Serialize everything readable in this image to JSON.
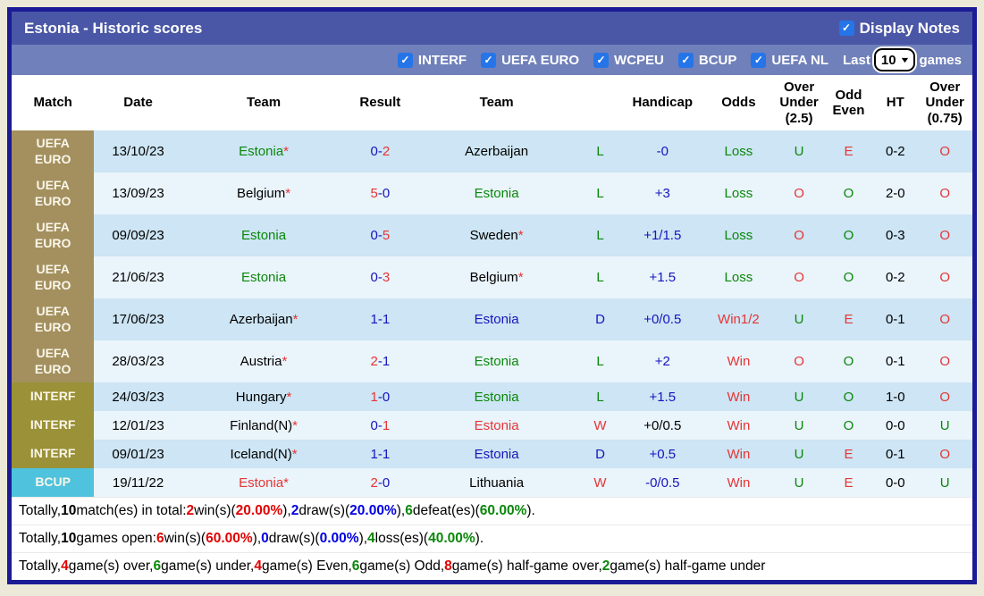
{
  "colors": {
    "green": "#0a870a",
    "red": "#e53535",
    "blue": "#1515bd",
    "black": "#000000",
    "badge_uefa": "#a3905e",
    "badge_interf": "#9a9138",
    "badge_bcup": "#4fc3dd",
    "stripe_a": "#cde5f4",
    "stripe_b": "#eaf4fb"
  },
  "header": {
    "title": "Estonia - Historic scores",
    "display_notes_label": "Display Notes",
    "display_notes_checked": true
  },
  "filters": {
    "competitions": [
      {
        "label": "INTERF",
        "checked": true
      },
      {
        "label": "UEFA EURO",
        "checked": true
      },
      {
        "label": "WCPEU",
        "checked": true
      },
      {
        "label": "BCUP",
        "checked": true
      },
      {
        "label": "UEFA NL",
        "checked": true
      }
    ],
    "last_label": "Last",
    "games_label": "games",
    "last_value": "10",
    "last_options": [
      "10"
    ]
  },
  "table": {
    "columns": [
      "Match",
      "Date",
      "Team",
      "Result",
      "Team",
      "",
      "Handicap",
      "Odds",
      "Over Under (2.5)",
      "Odd Even",
      "HT",
      "Over Under (0.75)"
    ],
    "rows": [
      {
        "competition": "UEFA EURO",
        "badge_color": "#a3905e",
        "date": "13/10/23",
        "home": {
          "name": "Estonia",
          "starred": true,
          "color": "#0a870a"
        },
        "score": {
          "home": "0",
          "away": "2",
          "home_color": "#1515bd",
          "away_color": "#e53535"
        },
        "away": {
          "name": "Azerbaijan",
          "starred": false,
          "color": "#000000"
        },
        "wdl": {
          "text": "L",
          "color": "#0a870a"
        },
        "handicap": {
          "text": "-0",
          "color": "#1515bd"
        },
        "odds": {
          "text": "Loss",
          "color": "#0a870a"
        },
        "ou25": {
          "text": "U",
          "color": "#0a870a"
        },
        "oddeven": {
          "text": "E",
          "color": "#e53535"
        },
        "ht": "0-2",
        "ou075": {
          "text": "O",
          "color": "#e53535"
        }
      },
      {
        "competition": "UEFA EURO",
        "badge_color": "#a3905e",
        "date": "13/09/23",
        "home": {
          "name": "Belgium",
          "starred": true,
          "color": "#000000"
        },
        "score": {
          "home": "5",
          "away": "0",
          "home_color": "#e53535",
          "away_color": "#1515bd"
        },
        "away": {
          "name": "Estonia",
          "starred": false,
          "color": "#0a870a"
        },
        "wdl": {
          "text": "L",
          "color": "#0a870a"
        },
        "handicap": {
          "text": "+3",
          "color": "#1515bd"
        },
        "odds": {
          "text": "Loss",
          "color": "#0a870a"
        },
        "ou25": {
          "text": "O",
          "color": "#e53535"
        },
        "oddeven": {
          "text": "O",
          "color": "#0a870a"
        },
        "ht": "2-0",
        "ou075": {
          "text": "O",
          "color": "#e53535"
        }
      },
      {
        "competition": "UEFA EURO",
        "badge_color": "#a3905e",
        "date": "09/09/23",
        "home": {
          "name": "Estonia",
          "starred": false,
          "color": "#0a870a"
        },
        "score": {
          "home": "0",
          "away": "5",
          "home_color": "#1515bd",
          "away_color": "#e53535"
        },
        "away": {
          "name": "Sweden",
          "starred": true,
          "color": "#000000"
        },
        "wdl": {
          "text": "L",
          "color": "#0a870a"
        },
        "handicap": {
          "text": "+1/1.5",
          "color": "#1515bd"
        },
        "odds": {
          "text": "Loss",
          "color": "#0a870a"
        },
        "ou25": {
          "text": "O",
          "color": "#e53535"
        },
        "oddeven": {
          "text": "O",
          "color": "#0a870a"
        },
        "ht": "0-3",
        "ou075": {
          "text": "O",
          "color": "#e53535"
        }
      },
      {
        "competition": "UEFA EURO",
        "badge_color": "#a3905e",
        "date": "21/06/23",
        "home": {
          "name": "Estonia",
          "starred": false,
          "color": "#0a870a"
        },
        "score": {
          "home": "0",
          "away": "3",
          "home_color": "#1515bd",
          "away_color": "#e53535"
        },
        "away": {
          "name": "Belgium",
          "starred": true,
          "color": "#000000"
        },
        "wdl": {
          "text": "L",
          "color": "#0a870a"
        },
        "handicap": {
          "text": "+1.5",
          "color": "#1515bd"
        },
        "odds": {
          "text": "Loss",
          "color": "#0a870a"
        },
        "ou25": {
          "text": "O",
          "color": "#e53535"
        },
        "oddeven": {
          "text": "O",
          "color": "#0a870a"
        },
        "ht": "0-2",
        "ou075": {
          "text": "O",
          "color": "#e53535"
        }
      },
      {
        "competition": "UEFA EURO",
        "badge_color": "#a3905e",
        "date": "17/06/23",
        "home": {
          "name": "Azerbaijan",
          "starred": true,
          "color": "#000000"
        },
        "score": {
          "home": "1",
          "away": "1",
          "home_color": "#1515bd",
          "away_color": "#1515bd"
        },
        "away": {
          "name": "Estonia",
          "starred": false,
          "color": "#1515bd"
        },
        "wdl": {
          "text": "D",
          "color": "#1515bd"
        },
        "handicap": {
          "text": "+0/0.5",
          "color": "#1515bd"
        },
        "odds": {
          "text": "Win1/2",
          "color": "#e53535"
        },
        "ou25": {
          "text": "U",
          "color": "#0a870a"
        },
        "oddeven": {
          "text": "E",
          "color": "#e53535"
        },
        "ht": "0-1",
        "ou075": {
          "text": "O",
          "color": "#e53535"
        }
      },
      {
        "competition": "UEFA EURO",
        "badge_color": "#a3905e",
        "date": "28/03/23",
        "home": {
          "name": "Austria",
          "starred": true,
          "color": "#000000"
        },
        "score": {
          "home": "2",
          "away": "1",
          "home_color": "#e53535",
          "away_color": "#1515bd"
        },
        "away": {
          "name": "Estonia",
          "starred": false,
          "color": "#0a870a"
        },
        "wdl": {
          "text": "L",
          "color": "#0a870a"
        },
        "handicap": {
          "text": "+2",
          "color": "#1515bd"
        },
        "odds": {
          "text": "Win",
          "color": "#e53535"
        },
        "ou25": {
          "text": "O",
          "color": "#e53535"
        },
        "oddeven": {
          "text": "O",
          "color": "#0a870a"
        },
        "ht": "0-1",
        "ou075": {
          "text": "O",
          "color": "#e53535"
        }
      },
      {
        "competition": "INTERF",
        "badge_color": "#9a9138",
        "date": "24/03/23",
        "home": {
          "name": "Hungary",
          "starred": true,
          "color": "#000000"
        },
        "score": {
          "home": "1",
          "away": "0",
          "home_color": "#e53535",
          "away_color": "#1515bd"
        },
        "away": {
          "name": "Estonia",
          "starred": false,
          "color": "#0a870a"
        },
        "wdl": {
          "text": "L",
          "color": "#0a870a"
        },
        "handicap": {
          "text": "+1.5",
          "color": "#1515bd"
        },
        "odds": {
          "text": "Win",
          "color": "#e53535"
        },
        "ou25": {
          "text": "U",
          "color": "#0a870a"
        },
        "oddeven": {
          "text": "O",
          "color": "#0a870a"
        },
        "ht": "1-0",
        "ou075": {
          "text": "O",
          "color": "#e53535"
        }
      },
      {
        "competition": "INTERF",
        "badge_color": "#9a9138",
        "date": "12/01/23",
        "home": {
          "name": "Finland(N)",
          "starred": true,
          "color": "#000000"
        },
        "score": {
          "home": "0",
          "away": "1",
          "home_color": "#1515bd",
          "away_color": "#e53535"
        },
        "away": {
          "name": "Estonia",
          "starred": false,
          "color": "#e53535"
        },
        "wdl": {
          "text": "W",
          "color": "#e53535"
        },
        "handicap": {
          "text": "+0/0.5",
          "color": "#000000"
        },
        "odds": {
          "text": "Win",
          "color": "#e53535"
        },
        "ou25": {
          "text": "U",
          "color": "#0a870a"
        },
        "oddeven": {
          "text": "O",
          "color": "#0a870a"
        },
        "ht": "0-0",
        "ou075": {
          "text": "U",
          "color": "#0a870a"
        }
      },
      {
        "competition": "INTERF",
        "badge_color": "#9a9138",
        "date": "09/01/23",
        "home": {
          "name": "Iceland(N)",
          "starred": true,
          "color": "#000000"
        },
        "score": {
          "home": "1",
          "away": "1",
          "home_color": "#1515bd",
          "away_color": "#1515bd"
        },
        "away": {
          "name": "Estonia",
          "starred": false,
          "color": "#1515bd"
        },
        "wdl": {
          "text": "D",
          "color": "#1515bd"
        },
        "handicap": {
          "text": "+0.5",
          "color": "#1515bd"
        },
        "odds": {
          "text": "Win",
          "color": "#e53535"
        },
        "ou25": {
          "text": "U",
          "color": "#0a870a"
        },
        "oddeven": {
          "text": "E",
          "color": "#e53535"
        },
        "ht": "0-1",
        "ou075": {
          "text": "O",
          "color": "#e53535"
        }
      },
      {
        "competition": "BCUP",
        "badge_color": "#4fc3dd",
        "date": "19/11/22",
        "home": {
          "name": "Estonia",
          "starred": true,
          "color": "#e53535"
        },
        "score": {
          "home": "2",
          "away": "0",
          "home_color": "#e53535",
          "away_color": "#1515bd"
        },
        "away": {
          "name": "Lithuania",
          "starred": false,
          "color": "#000000"
        },
        "wdl": {
          "text": "W",
          "color": "#e53535"
        },
        "handicap": {
          "text": "-0/0.5",
          "color": "#1515bd"
        },
        "odds": {
          "text": "Win",
          "color": "#e53535"
        },
        "ou25": {
          "text": "U",
          "color": "#0a870a"
        },
        "oddeven": {
          "text": "E",
          "color": "#e53535"
        },
        "ht": "0-0",
        "ou075": {
          "text": "U",
          "color": "#0a870a"
        }
      }
    ]
  },
  "footer": {
    "lines": [
      [
        {
          "t": "Totally, "
        },
        {
          "t": "10",
          "b": true
        },
        {
          "t": " match(es) in total: "
        },
        {
          "t": "2",
          "b": true,
          "c": "#e00000"
        },
        {
          "t": " win(s)("
        },
        {
          "t": "20.00%",
          "b": true,
          "c": "#e00000"
        },
        {
          "t": "), "
        },
        {
          "t": "2",
          "b": true,
          "c": "#0000e0"
        },
        {
          "t": " draw(s)("
        },
        {
          "t": "20.00%",
          "b": true,
          "c": "#0000e0"
        },
        {
          "t": "), "
        },
        {
          "t": "6",
          "b": true,
          "c": "#0a870a"
        },
        {
          "t": " defeat(es)("
        },
        {
          "t": "60.00%",
          "b": true,
          "c": "#0a870a"
        },
        {
          "t": ")."
        }
      ],
      [
        {
          "t": "Totally, "
        },
        {
          "t": "10",
          "b": true
        },
        {
          "t": " games open: "
        },
        {
          "t": "6",
          "b": true,
          "c": "#e00000"
        },
        {
          "t": " win(s)("
        },
        {
          "t": "60.00%",
          "b": true,
          "c": "#e00000"
        },
        {
          "t": "), "
        },
        {
          "t": "0",
          "b": true,
          "c": "#0000e0"
        },
        {
          "t": " draw(s)("
        },
        {
          "t": "0.00%",
          "b": true,
          "c": "#0000e0"
        },
        {
          "t": "), "
        },
        {
          "t": "4",
          "b": true,
          "c": "#0a870a"
        },
        {
          "t": " loss(es)("
        },
        {
          "t": "40.00%",
          "b": true,
          "c": "#0a870a"
        },
        {
          "t": ")."
        }
      ],
      [
        {
          "t": "Totally, "
        },
        {
          "t": "4",
          "b": true,
          "c": "#e00000"
        },
        {
          "t": " game(s) over, "
        },
        {
          "t": "6",
          "b": true,
          "c": "#0a870a"
        },
        {
          "t": " game(s) under, "
        },
        {
          "t": "4",
          "b": true,
          "c": "#e00000"
        },
        {
          "t": " game(s) Even, "
        },
        {
          "t": "6",
          "b": true,
          "c": "#0a870a"
        },
        {
          "t": " game(s) Odd, "
        },
        {
          "t": "8",
          "b": true,
          "c": "#e00000"
        },
        {
          "t": " game(s) half-game over, "
        },
        {
          "t": "2",
          "b": true,
          "c": "#0a870a"
        },
        {
          "t": " game(s) half-game under"
        }
      ]
    ]
  }
}
